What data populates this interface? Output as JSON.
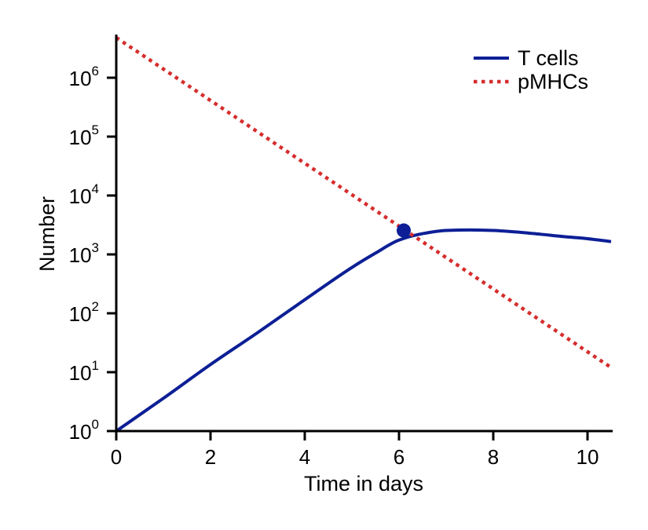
{
  "chart_data": {
    "type": "line",
    "xlabel": "Time in days",
    "ylabel": "Number",
    "xlim": [
      0,
      10.5
    ],
    "ylim": [
      1,
      5000000
    ],
    "yscale": "log",
    "grid": false,
    "legend_position": "top-right",
    "xticks": [
      "0",
      "2",
      "4",
      "6",
      "8",
      "10"
    ],
    "yticks": [
      {
        "value": 1,
        "base": "10",
        "exp": "0"
      },
      {
        "value": 10,
        "base": "10",
        "exp": "1"
      },
      {
        "value": 100,
        "base": "10",
        "exp": "2"
      },
      {
        "value": 1000,
        "base": "10",
        "exp": "3"
      },
      {
        "value": 10000,
        "base": "10",
        "exp": "4"
      },
      {
        "value": 100000,
        "base": "10",
        "exp": "5"
      },
      {
        "value": 1000000,
        "base": "10",
        "exp": "6"
      }
    ],
    "series": [
      {
        "name": "T cells",
        "style": "solid",
        "color": "#0d1f96",
        "x": [
          0,
          1,
          2,
          3,
          4,
          5,
          5.5,
          6,
          6.5,
          7,
          7.5,
          8,
          8.5,
          9,
          9.5,
          10,
          10.5
        ],
        "y": [
          1,
          3.6,
          13.5,
          47,
          170,
          600,
          1050,
          1750,
          2250,
          2550,
          2600,
          2550,
          2400,
          2200,
          2000,
          1850,
          1650
        ]
      },
      {
        "name": "pMHCs",
        "style": "dotted",
        "color": "#d62d2d",
        "x": [
          0,
          10.5
        ],
        "y": [
          4800000,
          12
        ]
      }
    ],
    "marker": {
      "x": 6.1,
      "y": 2550,
      "color": "#0d1f96"
    }
  }
}
